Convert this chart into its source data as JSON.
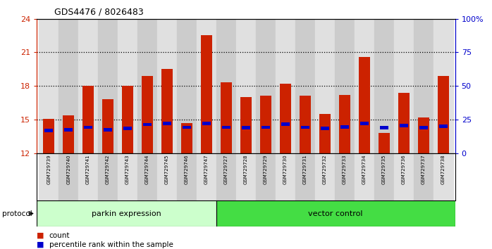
{
  "title": "GDS4476 / 8026483",
  "samples": [
    "GSM729739",
    "GSM729740",
    "GSM729741",
    "GSM729742",
    "GSM729743",
    "GSM729744",
    "GSM729745",
    "GSM729746",
    "GSM729747",
    "GSM729727",
    "GSM729728",
    "GSM729729",
    "GSM729730",
    "GSM729731",
    "GSM729732",
    "GSM729733",
    "GSM729734",
    "GSM729735",
    "GSM729736",
    "GSM729737",
    "GSM729738"
  ],
  "count_values": [
    15.05,
    15.35,
    18.0,
    16.8,
    18.0,
    18.9,
    19.5,
    14.65,
    22.5,
    18.3,
    17.0,
    17.1,
    18.2,
    17.1,
    15.5,
    17.2,
    20.6,
    13.8,
    17.4,
    15.2,
    18.9
  ],
  "percentile_values": [
    14.0,
    14.1,
    14.3,
    14.1,
    14.2,
    14.55,
    14.65,
    14.3,
    14.65,
    14.3,
    14.25,
    14.3,
    14.6,
    14.3,
    14.2,
    14.35,
    14.65,
    14.25,
    14.45,
    14.25,
    14.4
  ],
  "group1_count": 9,
  "group2_count": 12,
  "group1_label": "parkin expression",
  "group2_label": "vector control",
  "protocol_label": "protocol",
  "bar_color": "#cc2200",
  "blue_color": "#0000cc",
  "group1_bg": "#ccffcc",
  "group2_bg": "#44dd44",
  "ymin": 12,
  "ymax": 24,
  "yticks_left": [
    12,
    15,
    18,
    21,
    24
  ],
  "yticks_right_pct": [
    0,
    25,
    50,
    75,
    100
  ],
  "yticks_right_labels": [
    "0",
    "25",
    "50",
    "75",
    "100%"
  ],
  "dotted_lines": [
    15,
    18,
    21
  ],
  "left_tick_color": "#cc2200",
  "right_tick_color": "#0000cc"
}
